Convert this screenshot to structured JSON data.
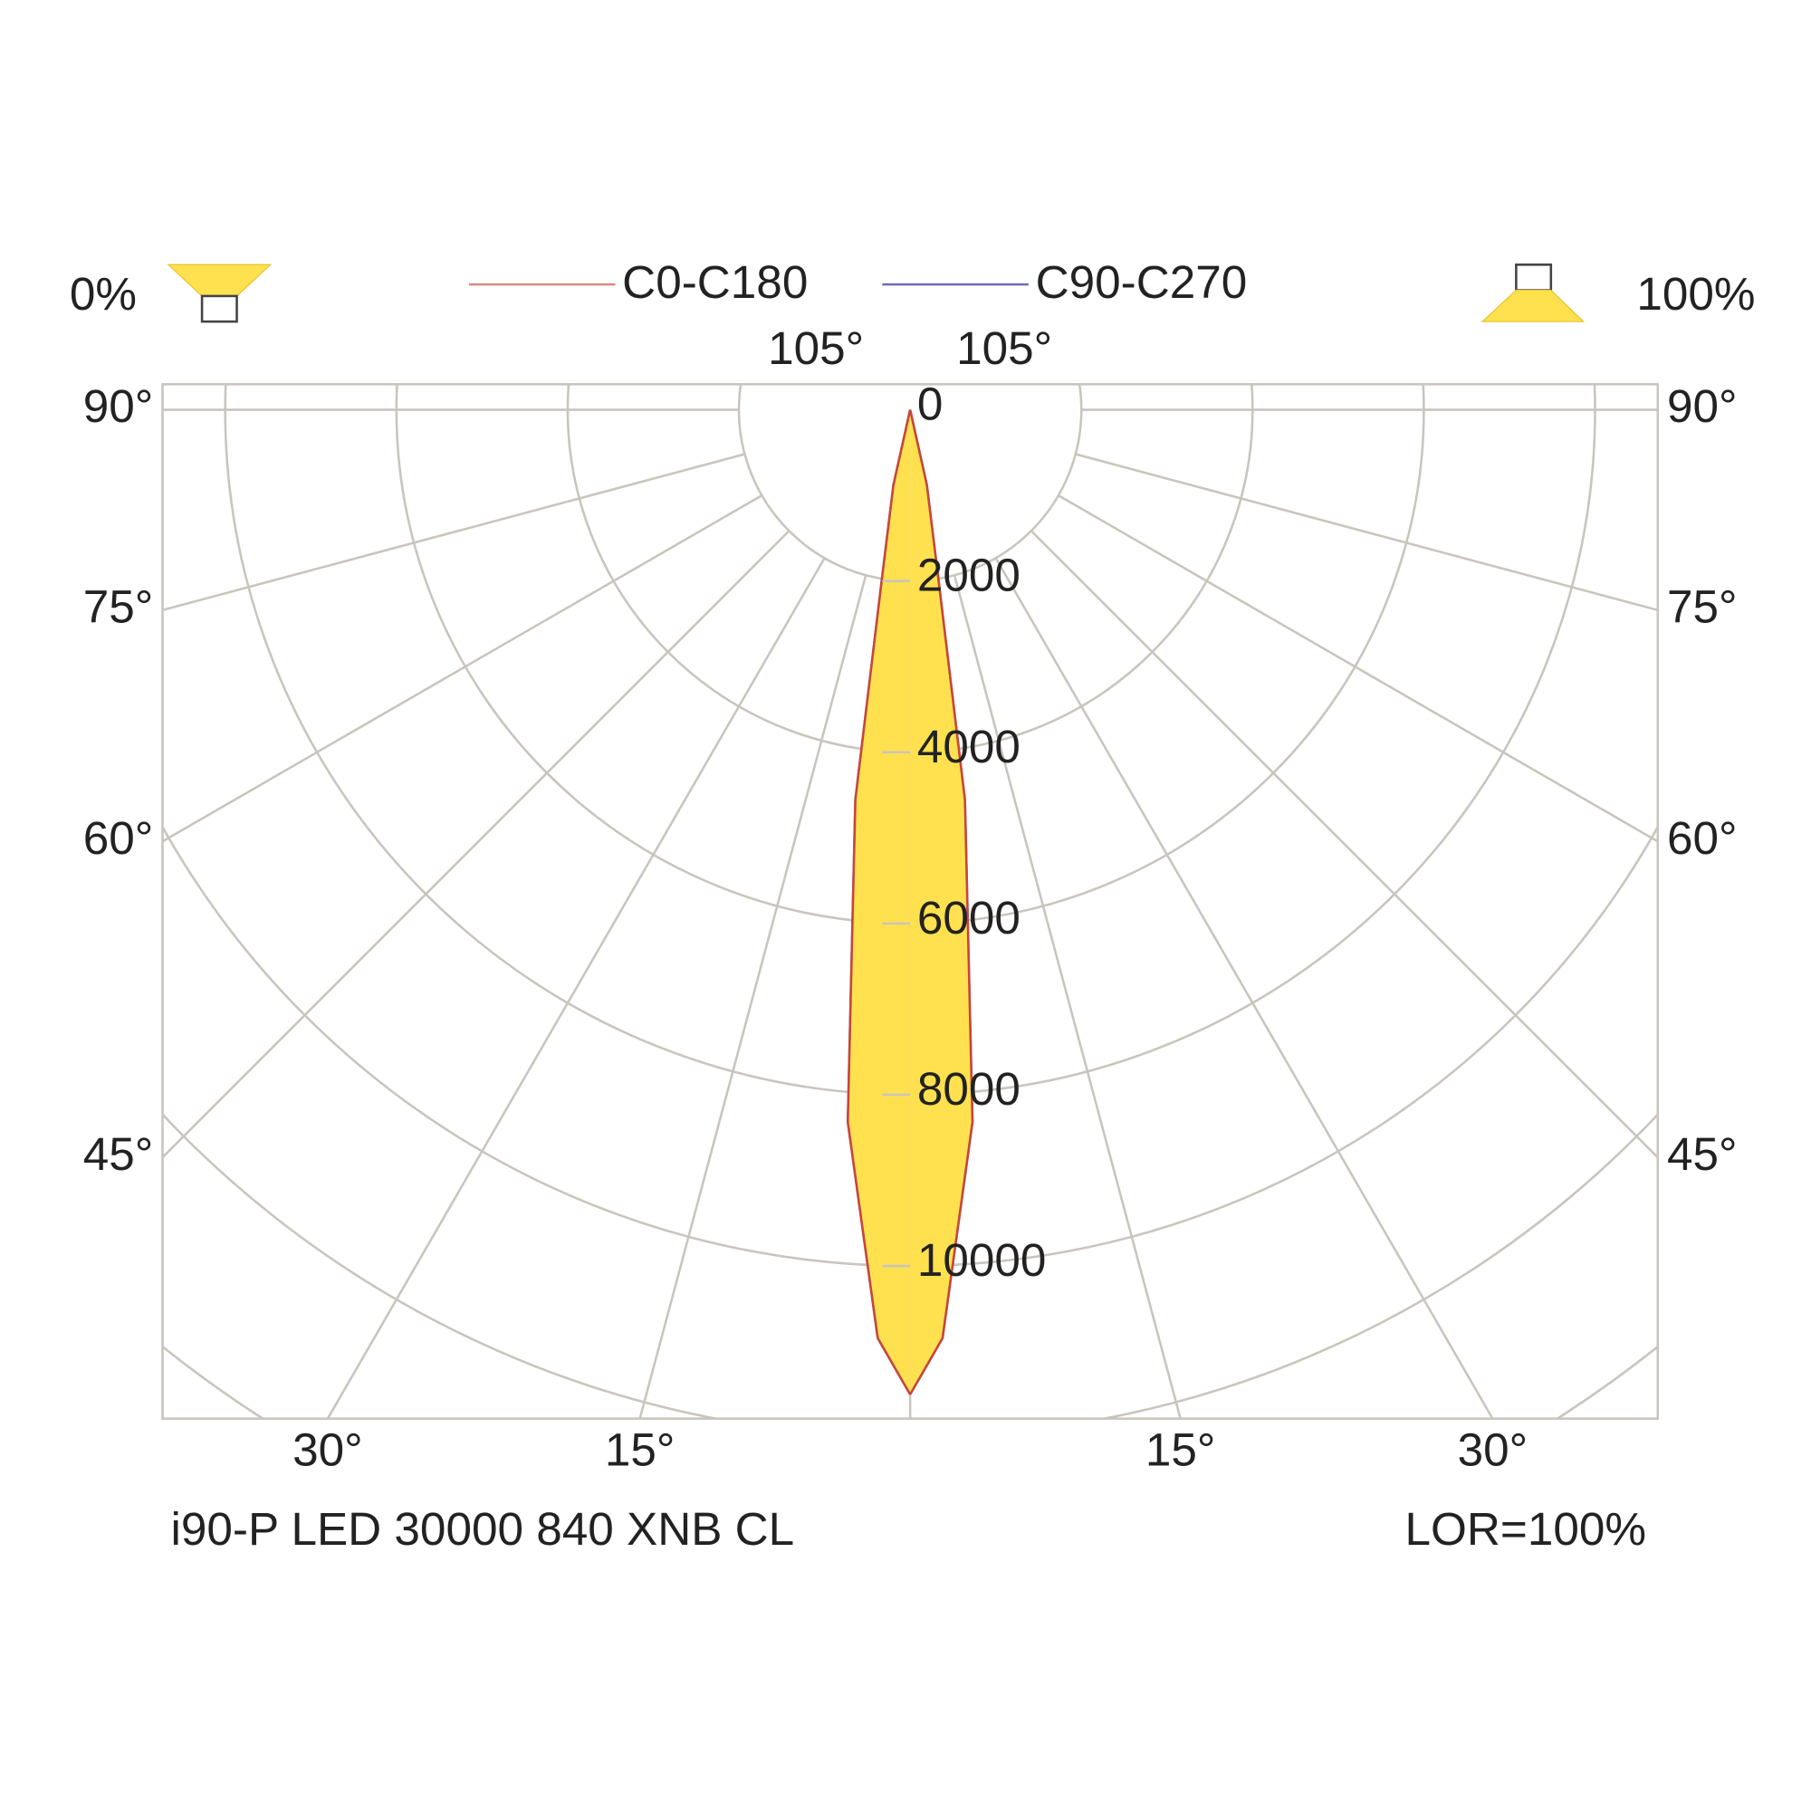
{
  "chart_data": {
    "type": "polar",
    "down_ratio": "0%",
    "up_ratio": "100%",
    "luminaire": "i90-P LED 30000 840 XNB CL",
    "lor": "LOR=100%",
    "x": [
      0,
      2,
      5,
      8,
      9.5,
      12.5,
      20
    ],
    "series": [
      {
        "name": "C0-C180",
        "color": "#c8453a",
        "legend_color": "#d98a80",
        "fill": "#ffe14f",
        "values": [
          11500,
          10850,
          8350,
          4600,
          2000,
          900,
          0
        ]
      },
      {
        "name": "C90-C270",
        "color": "#6c6cc0",
        "legend_color": "#6c6cc0",
        "values": [
          11500,
          10850,
          8350,
          4600,
          2000,
          900,
          0
        ]
      }
    ],
    "rlim": [
      0,
      12000
    ],
    "rticks": [
      0,
      2000,
      4000,
      6000,
      8000,
      10000
    ],
    "angle_ticks": [
      {
        "value": 15,
        "label": "15°"
      },
      {
        "value": 30,
        "label": "30°"
      },
      {
        "value": 45,
        "label": "45°"
      },
      {
        "value": 60,
        "label": "60°"
      },
      {
        "value": 75,
        "label": "75°"
      },
      {
        "value": 90,
        "label": "90°"
      },
      {
        "value": 105,
        "label": "105°"
      }
    ],
    "grid": true
  }
}
